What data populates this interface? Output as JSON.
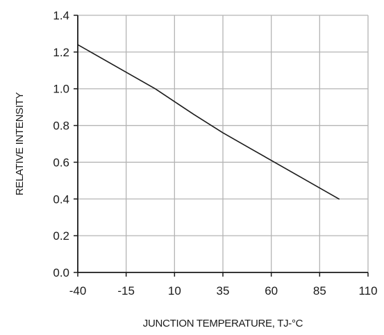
{
  "chart_data": {
    "type": "line",
    "title": "",
    "xlabel": "JUNCTION TEMPERATURE, TJ-°C",
    "ylabel": "RELATIVE INTENSITY",
    "xlim": [
      -40,
      110
    ],
    "ylim": [
      0.0,
      1.4
    ],
    "x_tick_labels": [
      "-40",
      "-15",
      "10",
      "35",
      "60",
      "85",
      "110"
    ],
    "y_tick_labels": [
      "0.0",
      "0.2",
      "0.4",
      "0.6",
      "0.8",
      "1.0",
      "1.2",
      "1.4"
    ],
    "grid": true,
    "series": [
      {
        "x": [
          -40,
          -15,
          0,
          10,
          20,
          35,
          50,
          60,
          75,
          85,
          95
        ],
        "y": [
          1.24,
          1.09,
          1.0,
          0.93,
          0.86,
          0.76,
          0.67,
          0.61,
          0.52,
          0.46,
          0.4
        ],
        "color": "#1a1a1a"
      }
    ]
  }
}
